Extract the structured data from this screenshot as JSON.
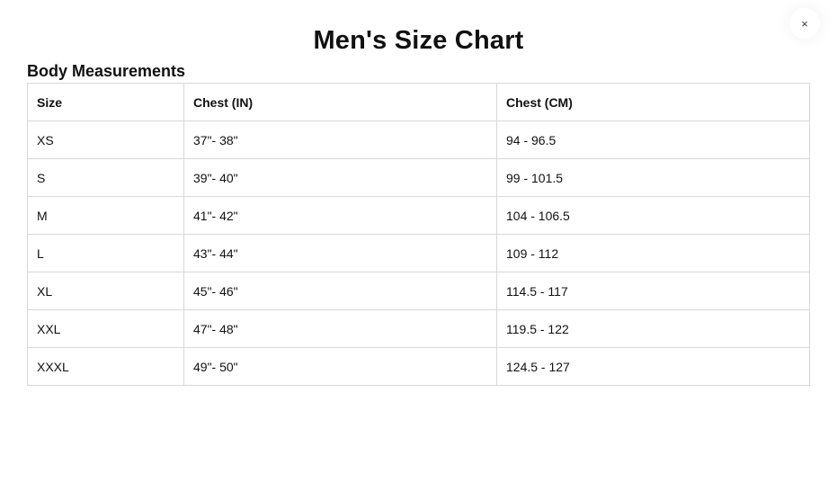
{
  "title": "Men's Size Chart",
  "section": "Body Measurements",
  "close": "×",
  "headers": [
    "Size",
    "Chest (IN)",
    "Chest (CM)"
  ],
  "rows": [
    [
      "XS",
      "37\"- 38\"",
      "94 - 96.5"
    ],
    [
      "S",
      "39\"- 40\"",
      "99 - 101.5"
    ],
    [
      "M",
      "41\"- 42\"",
      "104 - 106.5"
    ],
    [
      "L",
      "43\"- 44\"",
      "109 - 112"
    ],
    [
      "XL",
      "45\"- 46\"",
      "114.5 - 117"
    ],
    [
      "XXL",
      "47\"- 48\"",
      "119.5 - 122"
    ],
    [
      "XXXL",
      "49\"- 50\"",
      "124.5 - 127"
    ]
  ]
}
